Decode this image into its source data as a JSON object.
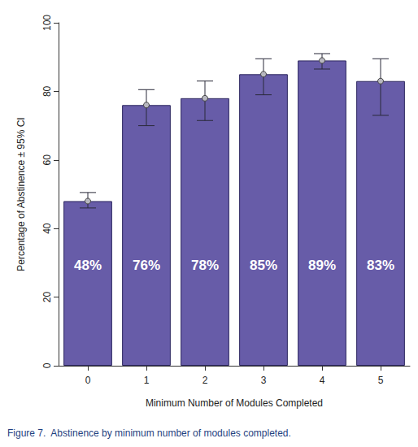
{
  "chart_data": {
    "type": "bar",
    "title": "Figure 7.  Abstinence by minimum number of modules completed.",
    "x_label": "Minimum Number of Modules Completed",
    "y_label": "Percentage of Abstinence ± 95% CI",
    "categories": [
      "0",
      "1",
      "2",
      "3",
      "4",
      "5"
    ],
    "values": [
      48,
      76,
      78,
      85,
      89,
      83
    ],
    "value_labels": [
      "48%",
      "76%",
      "78%",
      "85%",
      "89%",
      "83%"
    ],
    "ci_lower": [
      46,
      70,
      71.5,
      79,
      86.5,
      73
    ],
    "ci_upper": [
      50.5,
      80.5,
      83,
      89.5,
      91,
      89.5
    ],
    "color": "#675ca8",
    "ylim": [
      0,
      100
    ],
    "yticks": [
      0,
      20,
      40,
      60,
      80,
      100
    ],
    "grid": false,
    "data_labels": true
  }
}
